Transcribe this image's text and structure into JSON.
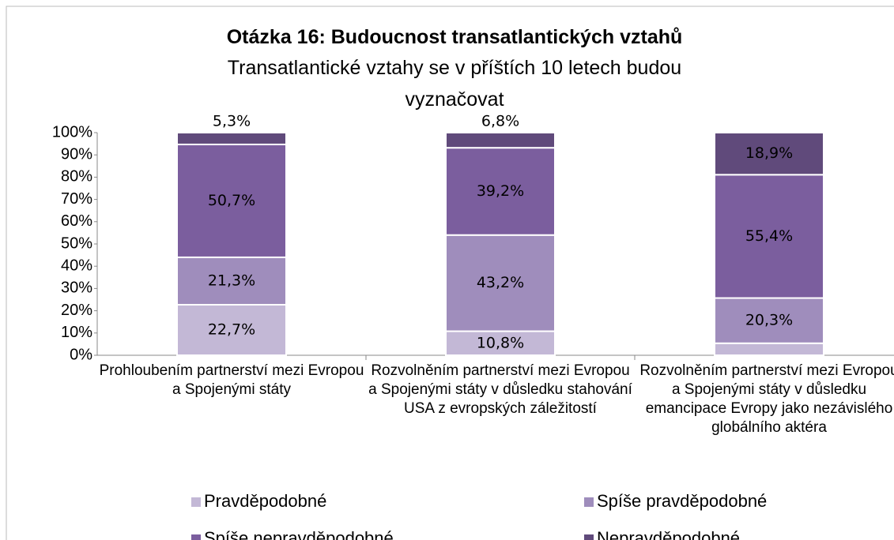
{
  "chart_data": {
    "type": "stacked_bar",
    "title": "Otázka 16: Budoucnost transatlantických vztahů",
    "subtitle": "Transatlantické vztahy se v příštích 10 letech budou vyznačovat",
    "categories": [
      "Prohloubením partnerství mezi Evropou a Spojenými státy",
      "Rozvolněním partnerství mezi Evropou a Spojenými státy v důsledku stahování USA z evropských záležitostí",
      "Rozvolněním partnerství mezi Evropou a Spojenými státy v důsledku emancipace Evropy jako nezávislého globálního aktéra"
    ],
    "series": [
      {
        "name": "Pravděpodobné",
        "color": "#c3b8d6",
        "values": [
          22.7,
          10.8,
          5.4
        ],
        "value_labels": [
          "22,7%",
          "10,8%",
          null
        ]
      },
      {
        "name": "Spíše pravděpodobné",
        "color": "#9f8dbc",
        "values": [
          21.3,
          43.2,
          20.3
        ],
        "value_labels": [
          "21,3%",
          "43,2%",
          "20,3%"
        ]
      },
      {
        "name": "Spíše nepravděpodobné",
        "color": "#7b5e9e",
        "values": [
          50.7,
          39.2,
          55.4
        ],
        "value_labels": [
          "50,7%",
          "39,2%",
          "55,4%"
        ]
      },
      {
        "name": "Nepravděpodobné",
        "color": "#604a7b",
        "values": [
          5.3,
          6.8,
          18.9
        ],
        "value_labels": [
          "5,3%",
          "6,8%",
          "18,9%"
        ]
      }
    ],
    "ylim": [
      0,
      100
    ],
    "yticks": [
      {
        "value": 0,
        "label": "0%"
      },
      {
        "value": 10,
        "label": "10%"
      },
      {
        "value": 20,
        "label": "20%"
      },
      {
        "value": 30,
        "label": "30%"
      },
      {
        "value": 40,
        "label": "40%"
      },
      {
        "value": 50,
        "label": "50%"
      },
      {
        "value": 60,
        "label": "60%"
      },
      {
        "value": 70,
        "label": "70%"
      },
      {
        "value": 80,
        "label": "80%"
      },
      {
        "value": 90,
        "label": "90%"
      },
      {
        "value": 100,
        "label": "100%"
      }
    ],
    "legend": "bottom"
  }
}
